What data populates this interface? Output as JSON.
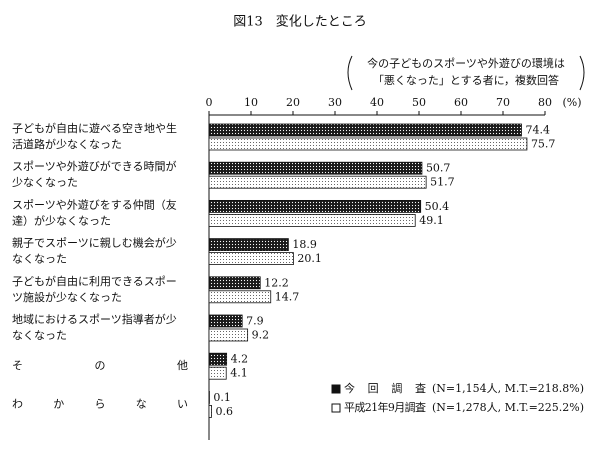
{
  "chart_data": {
    "type": "hbar",
    "title": "図13　変化したところ",
    "subtitle": [
      "今の子どものスポーツや外遊びの環境は",
      "「悪くなった」とする者に，複数回答"
    ],
    "unit": "(%)",
    "categories": [
      [
        "子どもが自由に遊べる空き地や生",
        "活道路が少なくなった"
      ],
      [
        "スポーツや外遊びができる時間が",
        "少なくなった"
      ],
      [
        "スポーツや外遊びをする仲間（友",
        "達）が少なくなった"
      ],
      [
        "親子でスポーツに親しむ機会が少",
        "なくなった"
      ],
      [
        "子どもが自由に利用できるスポー",
        "ツ施設が少なくなった"
      ],
      [
        "地域におけるスポーツ指導者が少",
        "なくなった"
      ],
      [
        "その他"
      ],
      [
        "わからない"
      ]
    ],
    "series": [
      {
        "name": "今回調査",
        "note": "(N=1,154人, M.T.=218.8%)",
        "color": "#1a1a1a",
        "values": [
          74.4,
          50.7,
          50.4,
          18.9,
          12.2,
          7.9,
          4.2,
          0.1
        ]
      },
      {
        "name": "平成21年9月調査",
        "note": "(N=1,278人, M.T.=225.2%)",
        "color": "#ffffff",
        "values": [
          75.7,
          51.7,
          49.1,
          20.1,
          14.7,
          9.2,
          4.1,
          0.6
        ]
      }
    ],
    "xlim": [
      0,
      80
    ],
    "xticks": [
      0,
      10,
      20,
      30,
      40,
      50,
      60,
      70,
      80
    ]
  }
}
